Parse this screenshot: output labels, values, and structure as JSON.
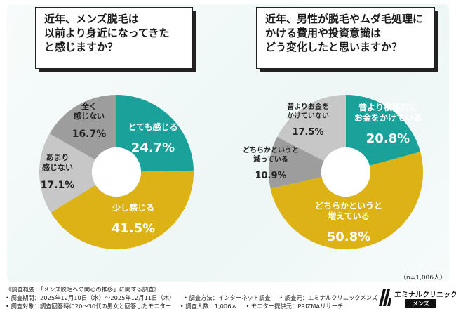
{
  "questions": {
    "q1": [
      "近年、メンズ脱毛は",
      "以前より身近になってきた",
      "と感じますか？"
    ],
    "q2": [
      "近年、男性が脱毛やムダ毛処理に",
      "かける費用や投資意識は",
      "どう変化したと思いますか？"
    ]
  },
  "chart_data": [
    {
      "type": "pie",
      "title": "近年、メンズ脱毛は以前より身近になってきたと感じますか？",
      "slices": [
        {
          "label": [
            "とても感じる"
          ],
          "value": 24.7,
          "value_label": "24.7%",
          "color": "#1aa19a"
        },
        {
          "label": [
            "少し感じる"
          ],
          "value": 41.5,
          "value_label": "41.5%",
          "color": "#dcb214"
        },
        {
          "label": [
            "あまり",
            "感じない"
          ],
          "value": 17.1,
          "value_label": "17.1%",
          "color": "#c7c7c7"
        },
        {
          "label": [
            "全く",
            "感じない"
          ],
          "value": 16.7,
          "value_label": "16.7%",
          "color": "#9d9d9d"
        }
      ]
    },
    {
      "type": "pie",
      "title": "近年、男性が脱毛やムダ毛処理にかける費用や投資意識はどう変化したと思いますか？",
      "slices": [
        {
          "label": [
            "昔より積極的に",
            "お金をかけている"
          ],
          "value": 20.8,
          "value_label": "20.8%",
          "color": "#1aa19a"
        },
        {
          "label": [
            "どちらかというと",
            "増えている"
          ],
          "value": 50.8,
          "value_label": "50.8%",
          "color": "#dcb214"
        },
        {
          "label": [
            "どちらかというと",
            "減っている"
          ],
          "value": 10.9,
          "value_label": "10.9%",
          "color": "#9d9d9d"
        },
        {
          "label": [
            "昔よりお金を",
            "かけていない"
          ],
          "value": 17.5,
          "value_label": "17.5%",
          "color": "#c7c7c7"
        }
      ]
    }
  ],
  "sample_size": "（n=1,006人）",
  "footer": {
    "title": "《調査概要：「メンズ脱毛への関心の推移」に関する調査》",
    "period": "• 調査期間：2025年12月10日（水）～2025年12月11日（木）",
    "method": "• 調査方法：インターネット調査",
    "org": "• 調査元：エミナルクリニックメンズ",
    "target": "• 調査対象：調査回答時に20～30代の男女と回答したモニター",
    "count": "• 調査人数：1,006人",
    "provider": "• モニター提供元：PRIZMAリサーチ"
  },
  "logo": {
    "name": "エミナルクリニック",
    "sub": "メンズ"
  }
}
